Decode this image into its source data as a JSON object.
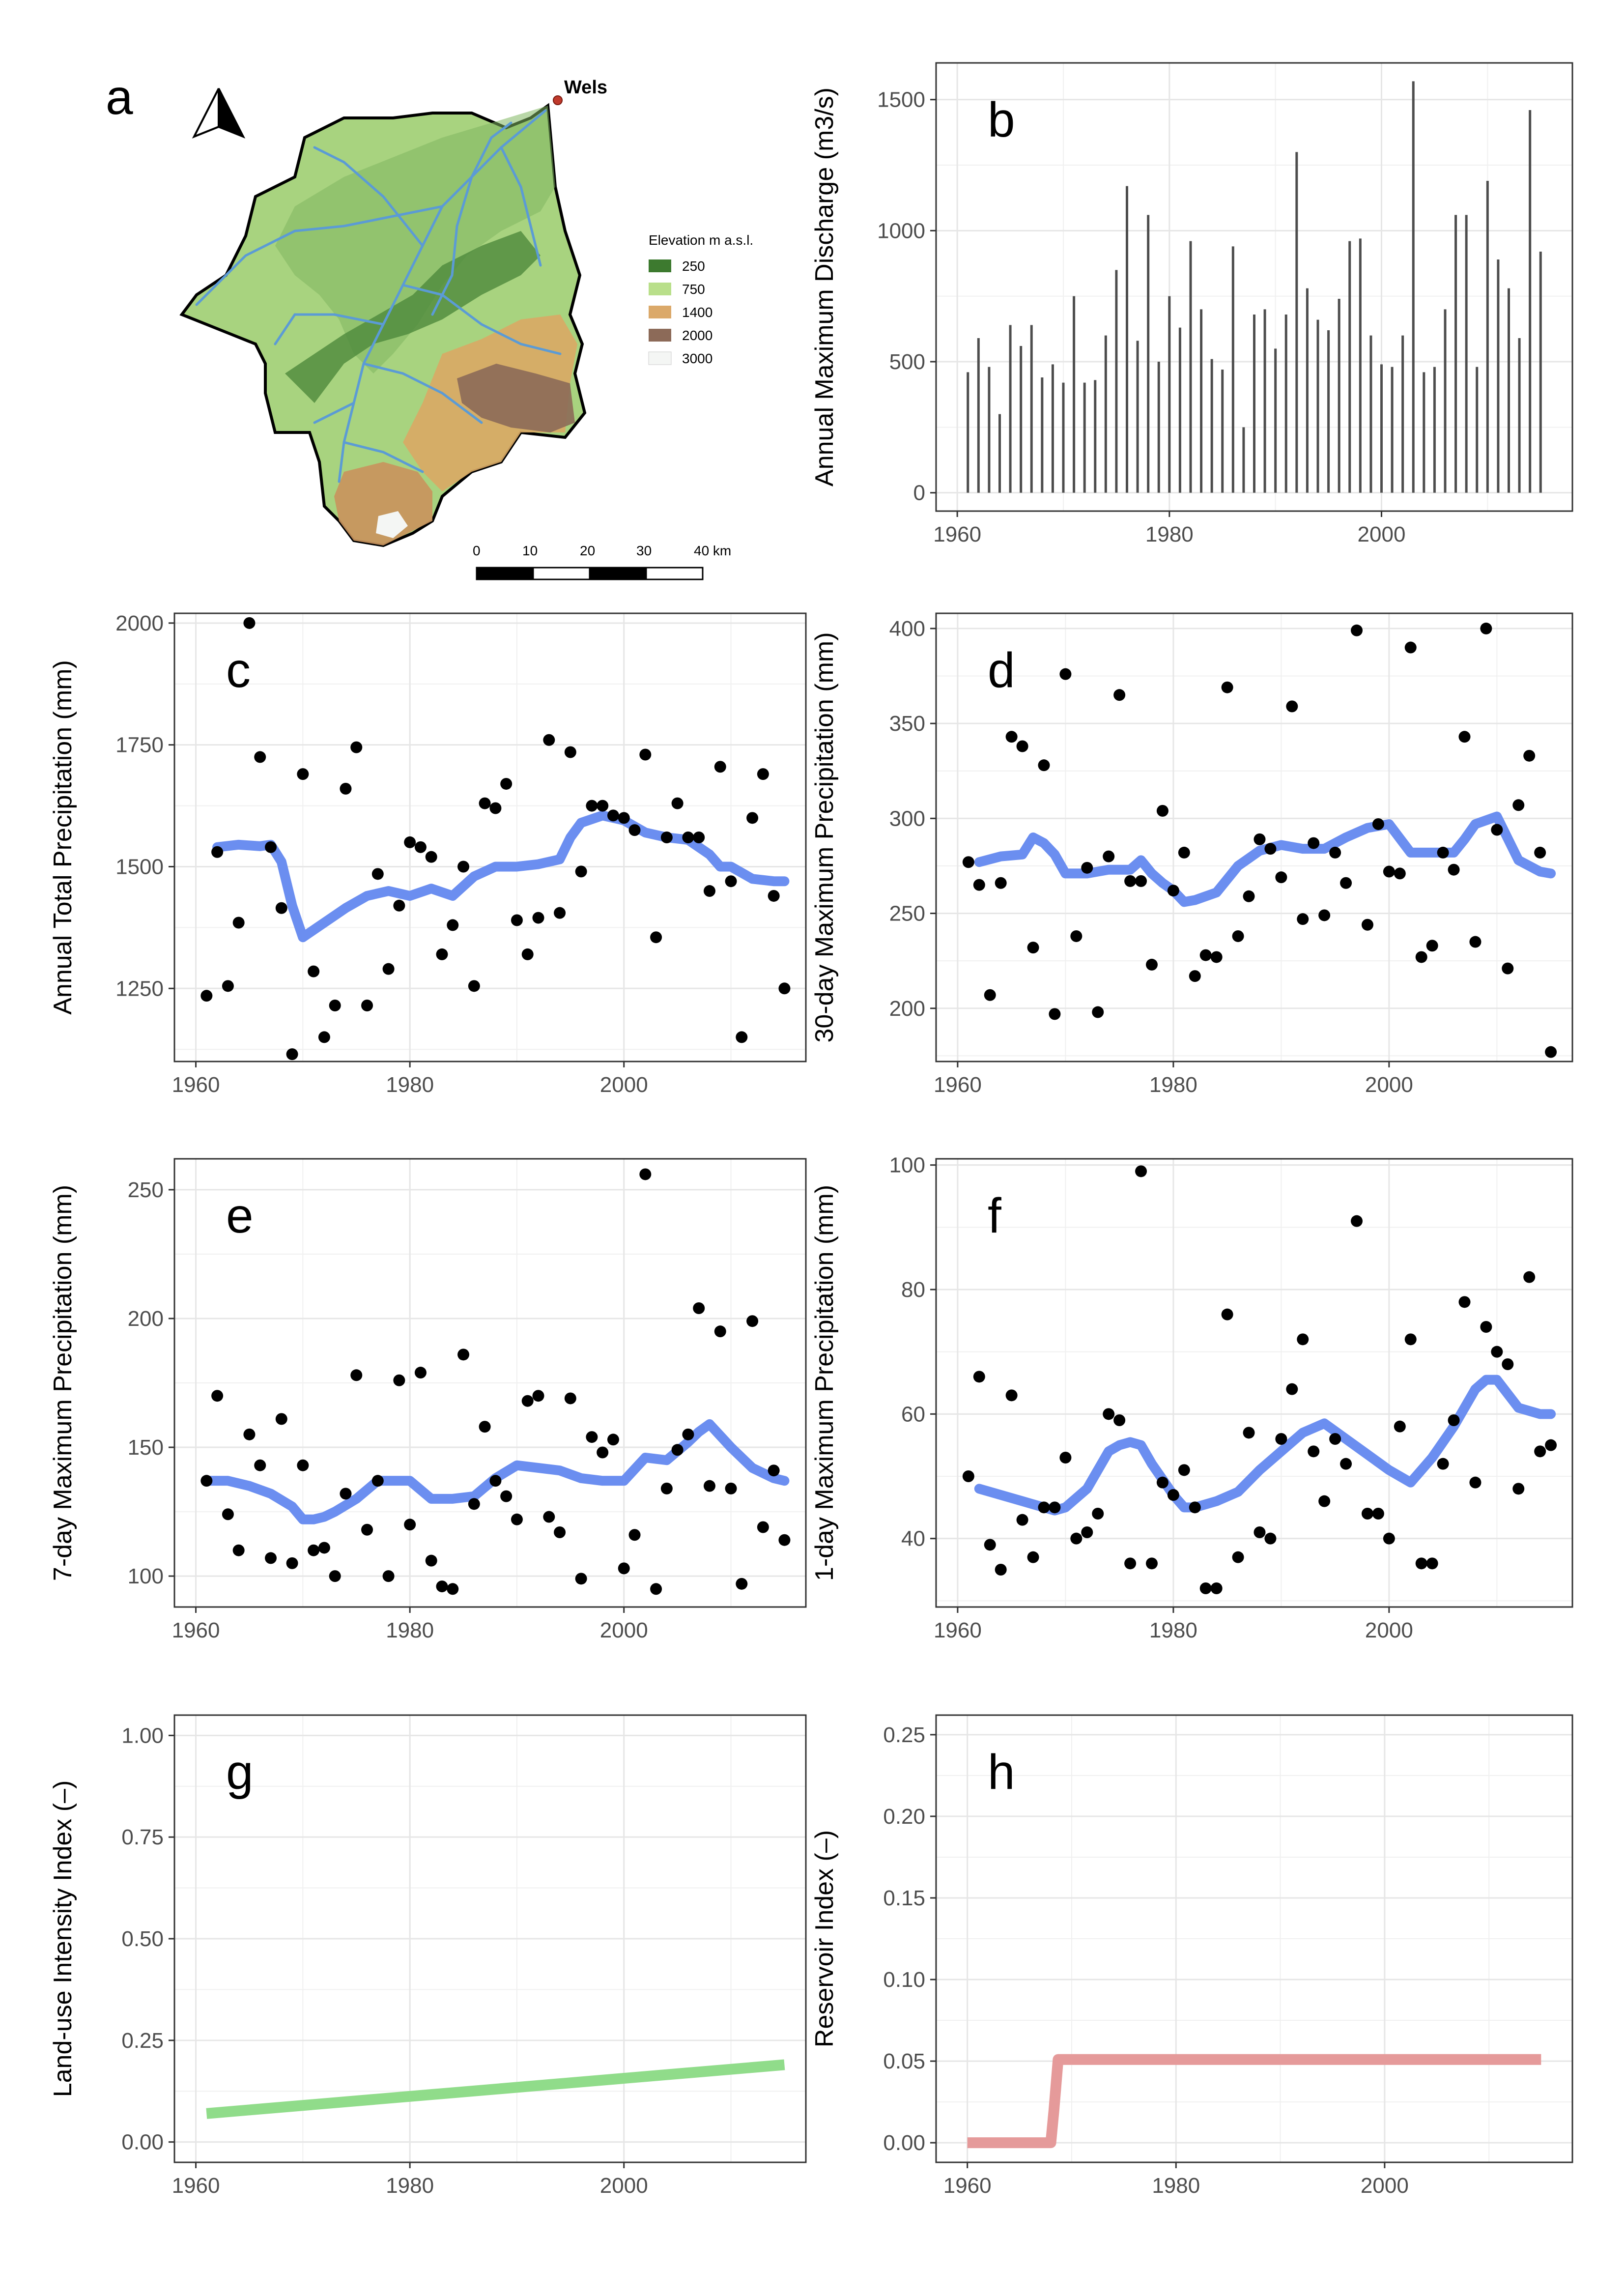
{
  "colors": {
    "smooth": "#6b8ef0",
    "landuse": "#90dc8a",
    "reservoir": "#e59a9a",
    "bar": "#4d4d4d",
    "river": "#5b9bd5",
    "town": "#c0392b"
  },
  "map_panel": {
    "label": "a",
    "town": "Wels",
    "legend_title": "Elevation m a.s.l.",
    "legend": [
      {
        "label": "250",
        "color": "#3d7a2f"
      },
      {
        "label": "750",
        "color": "#b9df8a"
      },
      {
        "label": "1400",
        "color": "#dba96a"
      },
      {
        "label": "2000",
        "color": "#8c6a58"
      },
      {
        "label": "3000",
        "color": "#f4f6f4"
      }
    ],
    "scale_labels": [
      "0",
      "10",
      "20",
      "30",
      "40 km"
    ]
  },
  "chart_data": [
    {
      "panel": "b",
      "type": "bar",
      "ylabel": "Annual Maximum Discharge (m3/s)",
      "xlabel": "",
      "xlim": [
        1958,
        2018
      ],
      "ylim": [
        -70,
        1640
      ],
      "xticks": [
        1960,
        1980,
        2000
      ],
      "yticks": [
        0,
        500,
        1000,
        1500
      ],
      "x": [
        1961,
        1962,
        1963,
        1964,
        1965,
        1966,
        1967,
        1968,
        1969,
        1970,
        1971,
        1972,
        1973,
        1974,
        1975,
        1976,
        1977,
        1978,
        1979,
        1980,
        1981,
        1982,
        1983,
        1984,
        1985,
        1986,
        1987,
        1988,
        1989,
        1990,
        1991,
        1992,
        1993,
        1994,
        1995,
        1996,
        1997,
        1998,
        1999,
        2000,
        2001,
        2002,
        2003,
        2004,
        2005,
        2006,
        2007,
        2008,
        2009,
        2010,
        2011,
        2012,
        2013,
        2014,
        2015
      ],
      "values": [
        460,
        590,
        480,
        300,
        640,
        560,
        640,
        440,
        490,
        420,
        750,
        420,
        430,
        600,
        850,
        1170,
        580,
        1060,
        500,
        750,
        630,
        960,
        700,
        510,
        470,
        940,
        250,
        680,
        700,
        550,
        680,
        1300,
        780,
        660,
        620,
        740,
        960,
        970,
        600,
        490,
        480,
        600,
        1570,
        460,
        480,
        700,
        1060,
        1060,
        480,
        1190,
        890,
        780,
        590,
        1460,
        920
      ]
    },
    {
      "panel": "c",
      "type": "scatter",
      "ylabel": "Annual Total Precipitation (mm)",
      "xlabel": "",
      "xlim": [
        1958,
        2017
      ],
      "ylim": [
        1100,
        2020
      ],
      "xticks": [
        1960,
        1980,
        2000
      ],
      "yticks": [
        1250,
        1500,
        1750,
        2000
      ],
      "x": [
        1961,
        1962,
        1963,
        1964,
        1965,
        1966,
        1967,
        1968,
        1969,
        1970,
        1971,
        1972,
        1973,
        1974,
        1975,
        1976,
        1977,
        1978,
        1979,
        1980,
        1981,
        1982,
        1983,
        1984,
        1985,
        1986,
        1987,
        1988,
        1989,
        1990,
        1991,
        1992,
        1993,
        1994,
        1995,
        1996,
        1997,
        1998,
        1999,
        2000,
        2001,
        2002,
        2003,
        2004,
        2005,
        2006,
        2007,
        2008,
        2009,
        2010,
        2011,
        2012,
        2013,
        2014,
        2015
      ],
      "y": [
        1235,
        1530,
        1255,
        1385,
        2000,
        1725,
        1540,
        1415,
        1115,
        1690,
        1285,
        1150,
        1215,
        1660,
        1745,
        1215,
        1485,
        1290,
        1420,
        1550,
        1540,
        1520,
        1320,
        1380,
        1500,
        1255,
        1630,
        1620,
        1670,
        1390,
        1320,
        1395,
        1760,
        1405,
        1735,
        1490,
        1625,
        1625,
        1605,
        1600,
        1575,
        1730,
        1355,
        1560,
        1630,
        1560,
        1560,
        1450,
        1705,
        1470,
        1150,
        1600,
        1690,
        1440,
        1250
      ],
      "smooth_x": [
        1962,
        1964,
        1966,
        1967,
        1968,
        1969,
        1970,
        1971,
        1972,
        1974,
        1976,
        1978,
        1980,
        1982,
        1984,
        1986,
        1988,
        1990,
        1992,
        1994,
        1995,
        1996,
        1998,
        2000,
        2002,
        2004,
        2006,
        2008,
        2009,
        2010,
        2012,
        2014,
        2015
      ],
      "smooth_y": [
        1540,
        1545,
        1542,
        1545,
        1510,
        1420,
        1355,
        1370,
        1385,
        1415,
        1440,
        1450,
        1440,
        1455,
        1440,
        1480,
        1500,
        1500,
        1505,
        1515,
        1560,
        1590,
        1605,
        1595,
        1570,
        1560,
        1555,
        1525,
        1500,
        1500,
        1475,
        1470,
        1470
      ]
    },
    {
      "panel": "d",
      "type": "scatter",
      "ylabel": "30-day Maximum Precipitation (mm)",
      "xlabel": "",
      "xlim": [
        1958,
        2017
      ],
      "ylim": [
        172,
        408
      ],
      "xticks": [
        1960,
        1980,
        2000
      ],
      "yticks": [
        200,
        250,
        300,
        350,
        400
      ],
      "x": [
        1961,
        1962,
        1963,
        1964,
        1965,
        1966,
        1967,
        1968,
        1969,
        1970,
        1971,
        1972,
        1973,
        1974,
        1975,
        1976,
        1977,
        1978,
        1979,
        1980,
        1981,
        1982,
        1983,
        1984,
        1985,
        1986,
        1987,
        1988,
        1989,
        1990,
        1991,
        1992,
        1993,
        1994,
        1995,
        1996,
        1997,
        1998,
        1999,
        2000,
        2001,
        2002,
        2003,
        2004,
        2005,
        2006,
        2007,
        2008,
        2009,
        2010,
        2011,
        2012,
        2013,
        2014,
        2015
      ],
      "y": [
        277,
        265,
        207,
        266,
        343,
        338,
        232,
        328,
        197,
        376,
        238,
        274,
        198,
        280,
        365,
        267,
        267,
        223,
        304,
        262,
        282,
        217,
        228,
        227,
        369,
        238,
        259,
        289,
        284,
        269,
        359,
        247,
        287,
        249,
        282,
        266,
        399,
        244,
        297,
        272,
        271,
        390,
        227,
        233,
        282,
        273,
        343,
        235,
        400,
        294,
        221,
        307,
        333,
        282,
        177
      ],
      "smooth_x": [
        1962,
        1964,
        1966,
        1967,
        1968,
        1969,
        1970,
        1972,
        1974,
        1976,
        1977,
        1978,
        1979,
        1980,
        1981,
        1982,
        1984,
        1986,
        1988,
        1990,
        1992,
        1994,
        1996,
        1998,
        2000,
        2002,
        2004,
        2006,
        2007,
        2008,
        2010,
        2012,
        2014,
        2015
      ],
      "smooth_y": [
        277,
        280,
        281,
        290,
        287,
        281,
        271,
        271,
        273,
        273,
        278,
        271,
        266,
        262,
        256,
        257,
        261,
        275,
        283,
        286,
        284,
        284,
        290,
        295,
        297,
        282,
        282,
        282,
        289,
        297,
        301,
        278,
        272,
        271
      ]
    },
    {
      "panel": "e",
      "type": "scatter",
      "ylabel": "7-day Maximum Precipitation (mm)",
      "xlabel": "",
      "xlim": [
        1958,
        2017
      ],
      "ylim": [
        88,
        262
      ],
      "xticks": [
        1960,
        1980,
        2000
      ],
      "yticks": [
        100,
        150,
        200,
        250
      ],
      "x": [
        1961,
        1962,
        1963,
        1964,
        1965,
        1966,
        1967,
        1968,
        1969,
        1970,
        1971,
        1972,
        1973,
        1974,
        1975,
        1976,
        1977,
        1978,
        1979,
        1980,
        1981,
        1982,
        1983,
        1984,
        1985,
        1986,
        1987,
        1988,
        1989,
        1990,
        1991,
        1992,
        1993,
        1994,
        1995,
        1996,
        1997,
        1998,
        1999,
        2000,
        2001,
        2002,
        2003,
        2004,
        2005,
        2006,
        2007,
        2008,
        2009,
        2010,
        2011,
        2012,
        2013,
        2014,
        2015
      ],
      "y": [
        137,
        170,
        124,
        110,
        155,
        143,
        107,
        161,
        105,
        143,
        110,
        111,
        100,
        132,
        178,
        118,
        137,
        100,
        176,
        120,
        179,
        106,
        96,
        95,
        186,
        128,
        158,
        137,
        131,
        122,
        168,
        170,
        123,
        117,
        169,
        99,
        154,
        148,
        153,
        103,
        116,
        256,
        95,
        134,
        149,
        155,
        204,
        135,
        195,
        134,
        97,
        199,
        119,
        141,
        114
      ],
      "smooth_x": [
        1961,
        1963,
        1965,
        1967,
        1969,
        1970,
        1971,
        1972,
        1973,
        1975,
        1977,
        1978,
        1980,
        1982,
        1984,
        1986,
        1988,
        1990,
        1992,
        1994,
        1996,
        1998,
        2000,
        2002,
        2004,
        2006,
        2007,
        2008,
        2010,
        2012,
        2014,
        2015
      ],
      "smooth_y": [
        137,
        137,
        135,
        132,
        127,
        122,
        122,
        123,
        125,
        130,
        137,
        137,
        137,
        130,
        130,
        131,
        138,
        143,
        142,
        141,
        138,
        137,
        137,
        146,
        145,
        152,
        156,
        159,
        150,
        142,
        138,
        137
      ]
    },
    {
      "panel": "f",
      "type": "scatter",
      "ylabel": "1-day Maximum Precipitation (mm)",
      "xlabel": "",
      "xlim": [
        1958,
        2017
      ],
      "ylim": [
        29,
        101
      ],
      "xticks": [
        1960,
        1980,
        2000
      ],
      "yticks": [
        40,
        60,
        80,
        100
      ],
      "x": [
        1961,
        1962,
        1963,
        1964,
        1965,
        1966,
        1967,
        1968,
        1969,
        1970,
        1971,
        1972,
        1973,
        1974,
        1975,
        1976,
        1977,
        1978,
        1979,
        1980,
        1981,
        1982,
        1983,
        1984,
        1985,
        1986,
        1987,
        1988,
        1989,
        1990,
        1991,
        1992,
        1993,
        1994,
        1995,
        1996,
        1997,
        1998,
        1999,
        2000,
        2001,
        2002,
        2003,
        2004,
        2005,
        2006,
        2007,
        2008,
        2009,
        2010,
        2011,
        2012,
        2013,
        2014,
        2015
      ],
      "y": [
        50,
        66,
        39,
        35,
        63,
        43,
        37,
        45,
        45,
        53,
        40,
        41,
        44,
        60,
        59,
        36,
        99,
        36,
        49,
        47,
        51,
        45,
        32,
        32,
        76,
        37,
        57,
        41,
        40,
        56,
        64,
        72,
        54,
        46,
        56,
        52,
        91,
        44,
        44,
        40,
        58,
        72,
        36,
        36,
        52,
        59,
        78,
        49,
        74,
        70,
        68,
        48,
        82,
        54,
        55
      ],
      "smooth_x": [
        1962,
        1964,
        1966,
        1968,
        1969,
        1970,
        1971,
        1972,
        1974,
        1975,
        1976,
        1977,
        1978,
        1980,
        1981,
        1982,
        1984,
        1986,
        1988,
        1990,
        1992,
        1994,
        1996,
        1998,
        2000,
        2002,
        2004,
        2006,
        2008,
        2009,
        2010,
        2012,
        2014,
        2015
      ],
      "smooth_y": [
        48,
        47,
        46,
        45,
        44.5,
        45,
        46.5,
        48,
        54,
        55,
        55.5,
        55,
        52,
        47,
        45,
        45,
        46,
        47.5,
        51,
        54,
        57,
        58.5,
        56,
        53.5,
        51,
        49,
        53,
        58,
        64,
        65.5,
        65.5,
        61,
        60,
        60
      ]
    },
    {
      "panel": "g",
      "type": "line",
      "ylabel": "Land-use Intensity Index (–)",
      "xlabel": "",
      "xlim": [
        1958,
        2017
      ],
      "ylim": [
        -0.05,
        1.05
      ],
      "xticks": [
        1960,
        1980,
        2000
      ],
      "yticks": [
        0.0,
        0.25,
        0.5,
        0.75,
        1.0
      ],
      "ytick_labels": [
        "0.00",
        "0.25",
        "0.50",
        "0.75",
        "1.00"
      ],
      "x": [
        1961,
        2015
      ],
      "y": [
        0.07,
        0.19
      ]
    },
    {
      "panel": "h",
      "type": "line",
      "ylabel": "Reservoir Index (–)",
      "xlabel": "",
      "xlim": [
        1957,
        2018
      ],
      "ylim": [
        -0.012,
        0.262
      ],
      "xticks": [
        1960,
        1980,
        2000
      ],
      "yticks": [
        0.0,
        0.05,
        0.1,
        0.15,
        0.2,
        0.25
      ],
      "ytick_labels": [
        "0.00",
        "0.05",
        "0.10",
        "0.15",
        "0.20",
        "0.25"
      ],
      "x": [
        1960,
        1968,
        1968.3,
        1968.7,
        2015
      ],
      "y": [
        0.0,
        0.0,
        0.02,
        0.051,
        0.051
      ]
    }
  ]
}
